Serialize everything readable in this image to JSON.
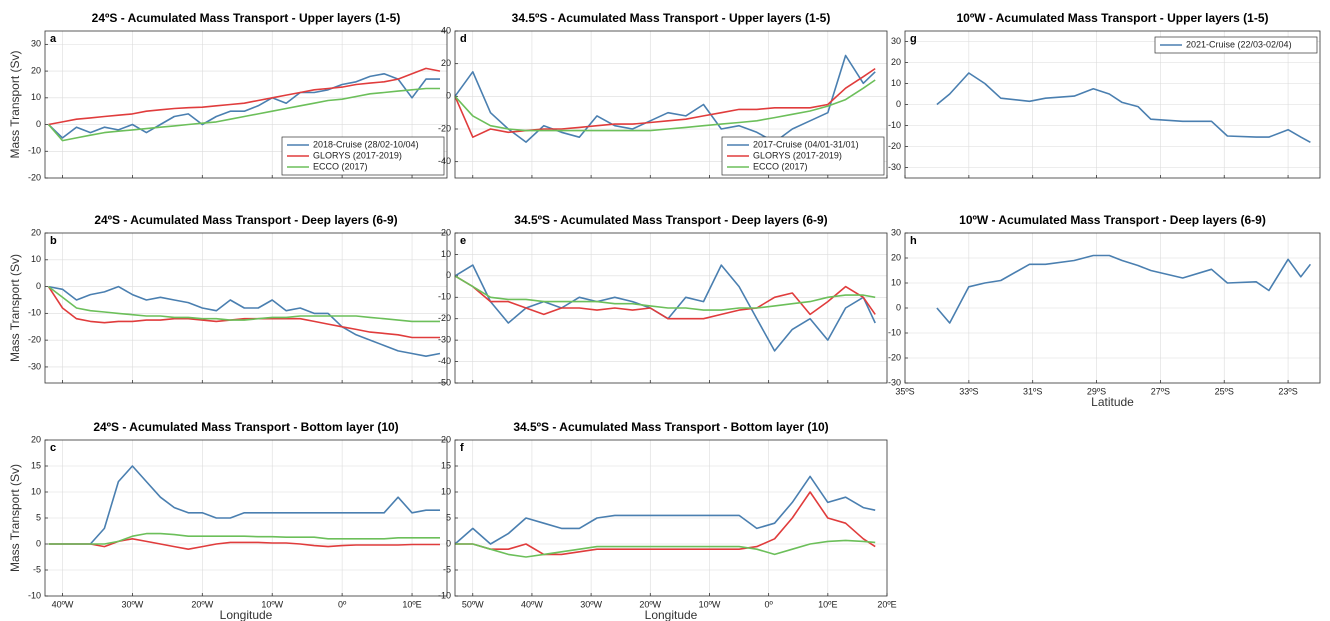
{
  "chart_data": [
    {
      "type": "line",
      "label": "a",
      "title": "24ºS - Acumulated Mass Transport - Upper layers (1-5)",
      "ylabel": "Mass Transport (Sv)",
      "x": [
        -42,
        -40,
        -38,
        -36,
        -34,
        -32,
        -30,
        -28,
        -26,
        -24,
        -22,
        -20,
        -18,
        -16,
        -14,
        -12,
        -10,
        -8,
        -6,
        -4,
        -2,
        0,
        2,
        4,
        6,
        8,
        10,
        12,
        14
      ],
      "xlim": [
        -42.5,
        15
      ],
      "xticks": [
        -40,
        -30,
        -20,
        -10,
        0,
        10
      ],
      "xtick_labels_shown": false,
      "ylim": [
        -20,
        35
      ],
      "yticks": [
        -20,
        -10,
        0,
        10,
        20,
        30
      ],
      "grid": true,
      "legend": "lower right",
      "series": [
        {
          "name": "2018-Cruise (28/02-10/04)",
          "color": "#4a7fb0",
          "values": [
            0,
            -5,
            -1,
            -3,
            -1,
            -2,
            0,
            -3,
            0,
            3,
            4,
            0,
            3,
            5,
            5,
            7,
            10,
            8,
            12,
            12,
            13,
            15,
            16,
            18,
            19,
            17,
            10,
            17,
            17
          ]
        },
        {
          "name": "GLORYS (2017-2019)",
          "color": "#e03c3c",
          "values": [
            0,
            1,
            2,
            2.5,
            3,
            3.5,
            4,
            5,
            5.5,
            6,
            6.3,
            6.5,
            7,
            7.5,
            8,
            9,
            10,
            11,
            12,
            13,
            13.5,
            14,
            15,
            15.5,
            16,
            17,
            19,
            21,
            20
          ]
        },
        {
          "name": "ECCO (2017)",
          "color": "#6cbf5a",
          "values": [
            0,
            -6,
            -5,
            -4,
            -3,
            -2.5,
            -2,
            -1.5,
            -1,
            -0.5,
            0,
            0.5,
            1,
            2,
            3,
            4,
            5,
            6,
            7,
            8,
            9,
            9.5,
            10.5,
            11.5,
            12,
            12.5,
            13,
            13.5,
            13.5
          ]
        }
      ]
    },
    {
      "type": "line",
      "label": "b",
      "title": "24ºS - Acumulated Mass Transport - Deep layers (6-9)",
      "ylabel": "Mass Transport (Sv)",
      "x": [
        -42,
        -40,
        -38,
        -36,
        -34,
        -32,
        -30,
        -28,
        -26,
        -24,
        -22,
        -20,
        -18,
        -16,
        -14,
        -12,
        -10,
        -8,
        -6,
        -4,
        -2,
        0,
        2,
        4,
        6,
        8,
        10,
        12,
        14
      ],
      "xlim": [
        -42.5,
        15
      ],
      "xticks": [
        -40,
        -30,
        -20,
        -10,
        0,
        10
      ],
      "xtick_labels_shown": false,
      "ylim": [
        -36,
        20
      ],
      "yticks": [
        -30,
        -20,
        -10,
        0,
        10,
        20
      ],
      "grid": true,
      "series": [
        {
          "name": "2018-Cruise (28/02-10/04)",
          "color": "#4a7fb0",
          "values": [
            0,
            -1,
            -5,
            -3,
            -2,
            0,
            -3,
            -5,
            -4,
            -5,
            -6,
            -8,
            -9,
            -5,
            -8,
            -8,
            -5,
            -9,
            -8,
            -10,
            -10,
            -15,
            -18,
            -20,
            -22,
            -24,
            -25,
            -26,
            -25
          ]
        },
        {
          "name": "GLORYS (2017-2019)",
          "color": "#e03c3c",
          "values": [
            0,
            -8,
            -12,
            -13,
            -13.5,
            -13,
            -13,
            -12.5,
            -12.5,
            -12,
            -12,
            -12.5,
            -13,
            -12.5,
            -12,
            -12,
            -12,
            -12,
            -12,
            -13,
            -14,
            -15,
            -16,
            -17,
            -17.5,
            -18,
            -19,
            -19,
            -19
          ]
        },
        {
          "name": "ECCO (2017)",
          "color": "#6cbf5a",
          "values": [
            0,
            -4,
            -8,
            -9,
            -9.5,
            -10,
            -10.5,
            -11,
            -11,
            -11.5,
            -11.5,
            -12,
            -12,
            -12.5,
            -12.5,
            -12,
            -11.5,
            -11.5,
            -11,
            -11,
            -11,
            -11,
            -11,
            -11.5,
            -12,
            -12.5,
            -13,
            -13,
            -13
          ]
        }
      ]
    },
    {
      "type": "line",
      "label": "c",
      "title": "24ºS - Acumulated Mass Transport - Bottom layer (10)",
      "ylabel": "Mass Transport (Sv)",
      "xlabel": "Longitude",
      "x": [
        -42,
        -40,
        -38,
        -36,
        -34,
        -32,
        -30,
        -28,
        -26,
        -24,
        -22,
        -20,
        -18,
        -16,
        -14,
        -12,
        -10,
        -8,
        -6,
        -4,
        -2,
        0,
        2,
        4,
        6,
        8,
        10,
        12,
        14
      ],
      "xlim": [
        -42.5,
        15
      ],
      "xticks": [
        {
          "value": -40,
          "label": "40ºW"
        },
        {
          "value": -30,
          "label": "30ºW"
        },
        {
          "value": -20,
          "label": "20ºW"
        },
        {
          "value": -10,
          "label": "10ºW"
        },
        {
          "value": 0,
          "label": "0º"
        },
        {
          "value": 10,
          "label": "10ºE"
        }
      ],
      "ylim": [
        -10,
        20
      ],
      "yticks": [
        -10,
        -5,
        0,
        5,
        10,
        15,
        20
      ],
      "grid": true,
      "series": [
        {
          "name": "2018-Cruise (28/02-10/04)",
          "color": "#4a7fb0",
          "values": [
            0,
            0,
            0,
            0,
            3,
            12,
            15,
            12,
            9,
            7,
            6,
            6,
            5,
            5,
            6,
            6,
            6,
            6,
            6,
            6,
            6,
            6,
            6,
            6,
            6,
            9,
            6,
            6.5,
            6.5
          ]
        },
        {
          "name": "GLORYS (2017-2019)",
          "color": "#e03c3c",
          "values": [
            0,
            0,
            0,
            0,
            -0.5,
            0.5,
            1,
            0.5,
            0,
            -0.5,
            -1,
            -0.5,
            0,
            0.3,
            0.3,
            0.3,
            0.2,
            0.2,
            0,
            -0.3,
            -0.5,
            -0.3,
            -0.2,
            -0.2,
            -0.2,
            -0.2,
            -0.1,
            -0.1,
            -0.1
          ]
        },
        {
          "name": "ECCO (2017)",
          "color": "#6cbf5a",
          "values": [
            0,
            0,
            0,
            0,
            0,
            0.5,
            1.5,
            2,
            2,
            1.8,
            1.5,
            1.5,
            1.5,
            1.5,
            1.5,
            1.4,
            1.4,
            1.3,
            1.3,
            1.3,
            1,
            1,
            1,
            1,
            1,
            1.2,
            1.2,
            1.2,
            1.2
          ]
        }
      ]
    },
    {
      "type": "line",
      "label": "d",
      "title": "34.5ºS - Acumulated Mass Transport - Upper layers (1-5)",
      "x": [
        -53,
        -50,
        -47,
        -44,
        -41,
        -38,
        -35,
        -32,
        -29,
        -26,
        -23,
        -20,
        -17,
        -14,
        -11,
        -8,
        -5,
        -2,
        1,
        4,
        7,
        10,
        13,
        16,
        18
      ],
      "xlim": [
        -53,
        20
      ],
      "xticks": [
        -50,
        -40,
        -30,
        -20,
        -10,
        0,
        10,
        20
      ],
      "xtick_labels_shown": false,
      "ylim": [
        -50,
        40
      ],
      "yticks": [
        -40,
        -20,
        0,
        20,
        40
      ],
      "grid": true,
      "legend": "lower right",
      "series": [
        {
          "name": "2017-Cruise (04/01-31/01)",
          "color": "#4a7fb0",
          "values": [
            0,
            15,
            -10,
            -20,
            -28,
            -18,
            -22,
            -25,
            -12,
            -18,
            -20,
            -15,
            -10,
            -12,
            -5,
            -20,
            -18,
            -22,
            -28,
            -20,
            -15,
            -10,
            25,
            8,
            15
          ]
        },
        {
          "name": "GLORYS (2017-2019)",
          "color": "#e03c3c",
          "values": [
            0,
            -25,
            -20,
            -22,
            -21,
            -20,
            -20,
            -19,
            -18,
            -17,
            -17,
            -16,
            -15,
            -14,
            -12,
            -10,
            -8,
            -8,
            -7,
            -7,
            -7,
            -5,
            5,
            12,
            17
          ]
        },
        {
          "name": "ECCO (2017)",
          "color": "#6cbf5a",
          "values": [
            0,
            -12,
            -18,
            -20,
            -21,
            -21,
            -21,
            -21,
            -21,
            -21,
            -21,
            -21,
            -20,
            -19,
            -18,
            -17,
            -16,
            -15,
            -13,
            -11,
            -9,
            -6,
            -2,
            5,
            10
          ]
        }
      ]
    },
    {
      "type": "line",
      "label": "e",
      "title": "34.5ºS - Acumulated Mass Transport - Deep layers (6-9)",
      "x": [
        -53,
        -50,
        -47,
        -44,
        -41,
        -38,
        -35,
        -32,
        -29,
        -26,
        -23,
        -20,
        -17,
        -14,
        -11,
        -8,
        -5,
        -2,
        1,
        4,
        7,
        10,
        13,
        16,
        18
      ],
      "xlim": [
        -53,
        20
      ],
      "xticks": [
        -50,
        -40,
        -30,
        -20,
        -10,
        0,
        10,
        20
      ],
      "xtick_labels_shown": false,
      "ylim": [
        -50,
        20
      ],
      "yticks": [
        -50,
        -40,
        -30,
        -20,
        -10,
        0,
        10,
        20
      ],
      "grid": true,
      "series": [
        {
          "name": "2017-Cruise (04/01-31/01)",
          "color": "#4a7fb0",
          "values": [
            0,
            5,
            -12,
            -22,
            -15,
            -12,
            -15,
            -10,
            -12,
            -10,
            -12,
            -15,
            -20,
            -10,
            -12,
            5,
            -5,
            -20,
            -35,
            -25,
            -20,
            -30,
            -15,
            -10,
            -22
          ]
        },
        {
          "name": "GLORYS (2017-2019)",
          "color": "#e03c3c",
          "values": [
            0,
            -5,
            -12,
            -12,
            -15,
            -18,
            -15,
            -15,
            -16,
            -15,
            -16,
            -15,
            -20,
            -20,
            -20,
            -18,
            -16,
            -15,
            -10,
            -8,
            -18,
            -12,
            -5,
            -10,
            -18
          ]
        },
        {
          "name": "ECCO (2017)",
          "color": "#6cbf5a",
          "values": [
            0,
            -5,
            -10,
            -11,
            -11,
            -12,
            -12,
            -12,
            -12,
            -13,
            -13,
            -14,
            -15,
            -15,
            -16,
            -16,
            -15,
            -15,
            -14,
            -13,
            -12,
            -10,
            -9,
            -9,
            -10
          ]
        }
      ]
    },
    {
      "type": "line",
      "label": "f",
      "title": "34.5ºS - Acumulated Mass Transport - Bottom layer (10)",
      "xlabel": "Longitude",
      "x": [
        -53,
        -50,
        -47,
        -44,
        -41,
        -38,
        -35,
        -32,
        -29,
        -26,
        -23,
        -20,
        -17,
        -14,
        -11,
        -8,
        -5,
        -2,
        1,
        4,
        7,
        10,
        13,
        16,
        18
      ],
      "xlim": [
        -53,
        20
      ],
      "xticks": [
        {
          "value": -50,
          "label": "50ºW"
        },
        {
          "value": -40,
          "label": "40ºW"
        },
        {
          "value": -30,
          "label": "30ºW"
        },
        {
          "value": -20,
          "label": "20ºW"
        },
        {
          "value": -10,
          "label": "10ºW"
        },
        {
          "value": 0,
          "label": "0º"
        },
        {
          "value": 10,
          "label": "10ºE"
        },
        {
          "value": 20,
          "label": "20ºE"
        }
      ],
      "ylim": [
        -10,
        20
      ],
      "yticks": [
        -10,
        -5,
        0,
        5,
        10,
        15,
        20
      ],
      "grid": true,
      "series": [
        {
          "name": "2017-Cruise (04/01-31/01)",
          "color": "#4a7fb0",
          "values": [
            0,
            3,
            0,
            2,
            5,
            4,
            3,
            3,
            5,
            5.5,
            5.5,
            5.5,
            5.5,
            5.5,
            5.5,
            5.5,
            5.5,
            3,
            4,
            8,
            13,
            8,
            9,
            7,
            6.5
          ]
        },
        {
          "name": "GLORYS (2017-2019)",
          "color": "#e03c3c",
          "values": [
            0,
            0,
            -1,
            -1,
            0,
            -2,
            -2,
            -1.5,
            -1,
            -1,
            -1,
            -1,
            -1,
            -1,
            -1,
            -1,
            -1,
            -0.5,
            1,
            5,
            10,
            5,
            4,
            1,
            -0.5
          ]
        },
        {
          "name": "ECCO (2017)",
          "color": "#6cbf5a",
          "values": [
            0,
            0,
            -1,
            -2,
            -2.5,
            -2,
            -1.5,
            -1,
            -0.5,
            -0.5,
            -0.5,
            -0.5,
            -0.5,
            -0.5,
            -0.5,
            -0.5,
            -0.5,
            -1,
            -2,
            -1,
            0,
            0.5,
            0.7,
            0.5,
            0.3
          ]
        }
      ]
    },
    {
      "type": "line",
      "label": "g",
      "title": "10ºW - Acumulated Mass Transport - Upper layers (1-5)",
      "x": [
        -34,
        -33.6,
        -33,
        -32.5,
        -32,
        -31.1,
        -30.6,
        -29.7,
        -29.1,
        -28.6,
        -28.2,
        -27.7,
        -27.3,
        -26.3,
        -25.4,
        -24.9,
        -24,
        -23.6,
        -23,
        -22.6,
        -22.3
      ],
      "xlim": [
        -35,
        -22
      ],
      "xticks": [
        -35,
        -33,
        -31,
        -29,
        -27,
        -25,
        -23
      ],
      "xtick_labels_shown": false,
      "ylim": [
        -35,
        35
      ],
      "yticks": [
        -30,
        -20,
        -10,
        0,
        10,
        20,
        30
      ],
      "grid": true,
      "legend": "upper right",
      "series": [
        {
          "name": "2021-Cruise (22/03-02/04)",
          "color": "#4a7fb0",
          "values": [
            0,
            5,
            15,
            10,
            3,
            1.5,
            3,
            4,
            7.5,
            5,
            1,
            -1,
            -7,
            -8,
            -8,
            -15,
            -15.5,
            -15.5,
            -12,
            -15.5,
            -18
          ]
        }
      ]
    },
    {
      "type": "line",
      "label": "h",
      "title": "10ºW - Acumulated Mass Transport - Deep layers (6-9)",
      "xlabel": "Latitude",
      "x": [
        -34,
        -33.6,
        -33,
        -32.5,
        -32,
        -31.1,
        -30.6,
        -29.7,
        -29.1,
        -28.6,
        -28.2,
        -27.7,
        -27.3,
        -26.3,
        -25.4,
        -24.9,
        -24,
        -23.6,
        -23,
        -22.6,
        -22.3
      ],
      "xlim": [
        -35,
        -22
      ],
      "xticks": [
        {
          "value": -35,
          "label": "35ºS"
        },
        {
          "value": -33,
          "label": "33ºS"
        },
        {
          "value": -31,
          "label": "31ºS"
        },
        {
          "value": -29,
          "label": "29ºS"
        },
        {
          "value": -27,
          "label": "27ºS"
        },
        {
          "value": -25,
          "label": "25ºS"
        },
        {
          "value": -23,
          "label": "23ºS"
        }
      ],
      "ylim": [
        -30,
        30
      ],
      "yticks": [
        -30,
        -20,
        -10,
        0,
        10,
        20,
        30
      ],
      "grid": true,
      "series": [
        {
          "name": "2021-Cruise (22/03-02/04)",
          "color": "#4a7fb0",
          "values": [
            0,
            -6,
            8.5,
            10,
            11,
            17.5,
            17.5,
            19,
            21,
            21,
            19,
            17,
            15,
            12,
            15.5,
            10,
            10.5,
            7,
            19.5,
            12.5,
            17.5
          ]
        }
      ]
    }
  ]
}
